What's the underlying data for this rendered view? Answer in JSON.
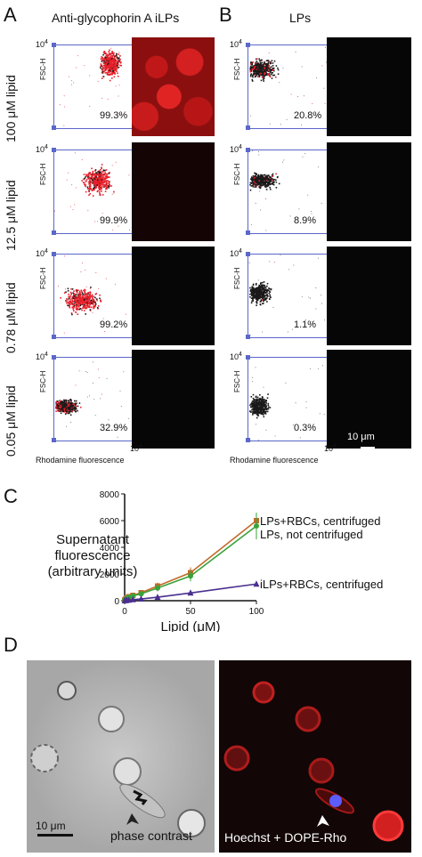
{
  "figure": {
    "panel_A": {
      "letter": "A",
      "title": "Anti-glycophorin A iLPs",
      "rows": [
        {
          "label": "100 μM lipid",
          "percent": "99.3%"
        },
        {
          "label": "12.5 μM lipid",
          "percent": "99.9%"
        },
        {
          "label": "0.78 μM lipid",
          "percent": "99.2%"
        },
        {
          "label": "0.05 μM lipid",
          "percent": "32.9%"
        }
      ]
    },
    "panel_B": {
      "letter": "B",
      "title": "LPs",
      "rows": [
        {
          "percent": "20.8%"
        },
        {
          "percent": "8.9%"
        },
        {
          "percent": "1.1%"
        },
        {
          "percent": "0.3%"
        }
      ],
      "scalebar_label": "10 μm"
    },
    "flow_axes": {
      "y_label": "FSC-H",
      "y_tick": "10",
      "y_tick_exp": "4",
      "x_label": "Rhodamine fluorescence",
      "x_tick": "10",
      "x_tick_exp": "4"
    },
    "panel_C": {
      "letter": "C"
    },
    "panel_D": {
      "letter": "D",
      "left_caption": "phase contrast",
      "right_caption": "Hoechst + DOPE-Rho",
      "scalebar_label": "10 μm"
    }
  },
  "chart_data": {
    "type": "line",
    "xlabel": "Lipid (μM)",
    "ylabel": "Supernatant fluorescence (arbitrary units)",
    "ylabel_lines": [
      "Supernatant",
      "fluorescence",
      "(arbitrary units)"
    ],
    "xlim": [
      0,
      100
    ],
    "ylim": [
      0,
      8000
    ],
    "x_ticks": [
      0,
      50,
      100
    ],
    "y_ticks": [
      0,
      2000,
      4000,
      6000,
      8000
    ],
    "grid": false,
    "x": [
      0.05,
      0.78,
      1.56,
      3.125,
      6.25,
      12.5,
      25,
      50,
      100
    ],
    "series": [
      {
        "name": "LPs+RBCs, centrifuged",
        "color": "#c26a2a",
        "marker": "square",
        "values": [
          60,
          120,
          200,
          300,
          400,
          600,
          1100,
          2100,
          6000
        ],
        "errors": [
          20,
          30,
          40,
          60,
          80,
          150,
          250,
          400,
          500
        ]
      },
      {
        "name": "LPs, not centrifuged",
        "color": "#39a33a",
        "marker": "circle",
        "values": [
          50,
          100,
          180,
          260,
          360,
          520,
          950,
          1850,
          5600
        ],
        "errors": [
          20,
          30,
          40,
          60,
          80,
          150,
          250,
          400,
          1000
        ]
      },
      {
        "name": "iLPs+RBCs, centrifuged",
        "color": "#4a2f8f",
        "marker": "triangle",
        "values": [
          10,
          20,
          30,
          50,
          80,
          130,
          260,
          580,
          1250
        ],
        "errors": [
          5,
          5,
          5,
          10,
          10,
          20,
          30,
          50,
          80
        ]
      }
    ]
  }
}
